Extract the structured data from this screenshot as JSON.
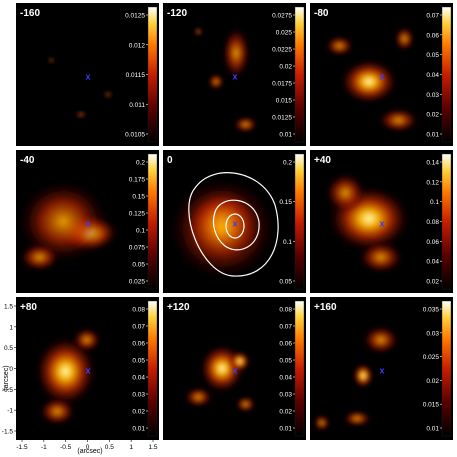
{
  "figure": {
    "panels": [
      {
        "label": "-160",
        "ticks": [
          "0.0125",
          "0.012",
          "0.0115",
          "0.011",
          "0.0105"
        ]
      },
      {
        "label": "-120",
        "ticks": [
          "0.0275",
          "0.025",
          "0.0225",
          "0.02",
          "0.0175",
          "0.015",
          "0.0125",
          "0.01"
        ]
      },
      {
        "label": "-80",
        "ticks": [
          "0.07",
          "0.06",
          "0.05",
          "0.04",
          "0.03",
          "0.02",
          "0.01"
        ]
      },
      {
        "label": "-40",
        "ticks": [
          "0.2",
          "0.175",
          "0.15",
          "0.125",
          "0.1",
          "0.075",
          "0.05",
          "0.025"
        ]
      },
      {
        "label": "0",
        "ticks": [
          "0.2",
          "0.15",
          "0.1",
          "0.05"
        ]
      },
      {
        "label": "+40",
        "ticks": [
          "0.14",
          "0.12",
          "0.1",
          "0.08",
          "0.06",
          "0.04",
          "0.02"
        ]
      },
      {
        "label": "+80",
        "ticks": [
          "0.08",
          "0.07",
          "0.06",
          "0.05",
          "0.04",
          "0.03",
          "0.02",
          "0.01"
        ]
      },
      {
        "label": "+120",
        "ticks": [
          "0.08",
          "0.07",
          "0.06",
          "0.05",
          "0.04",
          "0.03",
          "0.02",
          "0.01"
        ]
      },
      {
        "label": "+160",
        "ticks": [
          "0.035",
          "0.03",
          "0.025",
          "0.02",
          "0.015",
          "0.01"
        ]
      }
    ],
    "marker": "x",
    "x_axis": {
      "label": "(arcsec)",
      "ticks": [
        "-1.5",
        "-1",
        "-0.5",
        "0",
        "0.5",
        "1",
        "1.5"
      ]
    },
    "y_axis": {
      "label": "(arcsec)",
      "ticks": [
        "1.5",
        "1",
        "0.5",
        "0",
        "-0.5",
        "-1",
        "-1.5"
      ]
    }
  },
  "colors": {
    "background": "#000000",
    "marker": "#3a3aff",
    "contour": "#ffffff"
  }
}
